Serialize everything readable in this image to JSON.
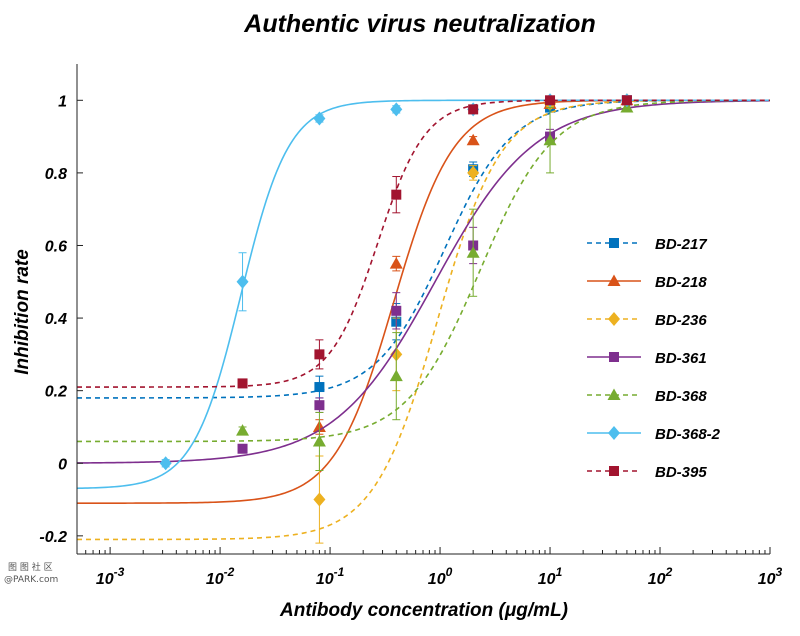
{
  "chart_data": {
    "type": "scatter",
    "title": "Authentic virus neutralization",
    "xlabel": "Antibody concentration (μg/mL)",
    "ylabel": "Inhibition rate",
    "x_scale": "log",
    "xlim": [
      0.0005,
      1000
    ],
    "ylim": [
      -0.25,
      1.1
    ],
    "x_ticks": [
      {
        "value": 0.001,
        "base": "10",
        "exp": "-3"
      },
      {
        "value": 0.01,
        "base": "10",
        "exp": "-2"
      },
      {
        "value": 0.1,
        "base": "10",
        "exp": "-1"
      },
      {
        "value": 1,
        "base": "10",
        "exp": "0"
      },
      {
        "value": 10,
        "base": "10",
        "exp": "1"
      },
      {
        "value": 100,
        "base": "10",
        "exp": "2"
      },
      {
        "value": 1000,
        "base": "10",
        "exp": "3"
      }
    ],
    "y_ticks": [
      {
        "value": -0.2,
        "label": "-0.2"
      },
      {
        "value": 0,
        "label": "0"
      },
      {
        "value": 0.2,
        "label": "0.2"
      },
      {
        "value": 0.4,
        "label": "0.4"
      },
      {
        "value": 0.6,
        "label": "0.6"
      },
      {
        "value": 0.8,
        "label": "0.8"
      },
      {
        "value": 1,
        "label": "1"
      }
    ],
    "legend_position": "right",
    "grid": false,
    "series": [
      {
        "name": "BD-217",
        "color": "#0072bd",
        "marker": "square",
        "dash": true,
        "fit": {
          "bottom": 0.18,
          "top": 1.0,
          "ec50": 1.1,
          "hill": 1.4
        },
        "points": [
          {
            "x": 0.08,
            "y": 0.21,
            "err": 0.03
          },
          {
            "x": 0.4,
            "y": 0.39,
            "err": 0.05
          },
          {
            "x": 2,
            "y": 0.81,
            "err": 0.02
          },
          {
            "x": 10,
            "y": 0.98,
            "err": 0.01
          },
          {
            "x": 50,
            "y": 1.0,
            "err": 0.01
          }
        ]
      },
      {
        "name": "BD-218",
        "color": "#d95319",
        "marker": "triangle",
        "dash": false,
        "fit": {
          "bottom": -0.11,
          "top": 1.0,
          "ec50": 0.38,
          "hill": 1.6
        },
        "points": [
          {
            "x": 0.08,
            "y": 0.1,
            "err": 0.02
          },
          {
            "x": 0.4,
            "y": 0.55,
            "err": 0.02
          },
          {
            "x": 2,
            "y": 0.89,
            "err": 0.01
          },
          {
            "x": 10,
            "y": 0.99,
            "err": 0.01
          },
          {
            "x": 50,
            "y": 1.0,
            "err": 0.01
          }
        ]
      },
      {
        "name": "BD-236",
        "color": "#edb120",
        "marker": "diamond",
        "dash": true,
        "fit": {
          "bottom": -0.21,
          "top": 1.0,
          "ec50": 0.95,
          "hill": 1.5
        },
        "points": [
          {
            "x": 0.08,
            "y": -0.1,
            "err": 0.12
          },
          {
            "x": 0.4,
            "y": 0.3,
            "err": 0.1
          },
          {
            "x": 2,
            "y": 0.8,
            "err": 0.02
          },
          {
            "x": 10,
            "y": 0.99,
            "err": 0.01
          },
          {
            "x": 50,
            "y": 1.0,
            "err": 0.01
          }
        ]
      },
      {
        "name": "BD-361",
        "color": "#7e2f8e",
        "marker": "square",
        "dash": false,
        "fit": {
          "bottom": 0.0,
          "top": 1.0,
          "ec50": 0.9,
          "hill": 0.95
        },
        "points": [
          {
            "x": 0.016,
            "y": 0.04,
            "err": 0.01
          },
          {
            "x": 0.08,
            "y": 0.16,
            "err": 0.02
          },
          {
            "x": 0.4,
            "y": 0.42,
            "err": 0.05
          },
          {
            "x": 2,
            "y": 0.6,
            "err": 0.05
          },
          {
            "x": 10,
            "y": 0.9,
            "err": 0.02
          },
          {
            "x": 50,
            "y": 1.0,
            "err": 0.01
          }
        ]
      },
      {
        "name": "BD-368",
        "color": "#77ac30",
        "marker": "triangle",
        "dash": true,
        "fit": {
          "bottom": 0.06,
          "top": 1.0,
          "ec50": 2.3,
          "hill": 1.3
        },
        "points": [
          {
            "x": 0.016,
            "y": 0.09,
            "err": 0.01
          },
          {
            "x": 0.08,
            "y": 0.06,
            "err": 0.08
          },
          {
            "x": 0.4,
            "y": 0.24,
            "err": 0.12
          },
          {
            "x": 2,
            "y": 0.58,
            "err": 0.12
          },
          {
            "x": 10,
            "y": 0.89,
            "err": 0.09
          },
          {
            "x": 50,
            "y": 0.98,
            "err": 0.01
          }
        ]
      },
      {
        "name": "BD-368-2",
        "color": "#4dbeee",
        "marker": "diamond",
        "dash": false,
        "fit": {
          "bottom": -0.07,
          "top": 1.0,
          "ec50": 0.0155,
          "hill": 2.0
        },
        "points": [
          {
            "x": 0.0032,
            "y": 0.0,
            "err": 0.01
          },
          {
            "x": 0.016,
            "y": 0.5,
            "err": 0.08
          },
          {
            "x": 0.08,
            "y": 0.95,
            "err": 0.01
          },
          {
            "x": 0.4,
            "y": 0.975,
            "err": 0.01
          },
          {
            "x": 2,
            "y": 0.975,
            "err": 0.01
          },
          {
            "x": 10,
            "y": 1.0,
            "err": 0.01
          },
          {
            "x": 50,
            "y": 1.0,
            "err": 0.01
          }
        ]
      },
      {
        "name": "BD-395",
        "color": "#a2142f",
        "marker": "square",
        "dash": true,
        "fit": {
          "bottom": 0.21,
          "top": 1.0,
          "ec50": 0.27,
          "hill": 2.0
        },
        "points": [
          {
            "x": 0.016,
            "y": 0.22,
            "err": 0.01
          },
          {
            "x": 0.08,
            "y": 0.3,
            "err": 0.04
          },
          {
            "x": 0.4,
            "y": 0.74,
            "err": 0.05
          },
          {
            "x": 2,
            "y": 0.975,
            "err": 0.01
          },
          {
            "x": 10,
            "y": 1.0,
            "err": 0.01
          },
          {
            "x": 50,
            "y": 1.0,
            "err": 0.01
          }
        ]
      }
    ]
  },
  "watermark": {
    "line1": "图 图 社 区",
    "line2": "@PARK.com"
  }
}
